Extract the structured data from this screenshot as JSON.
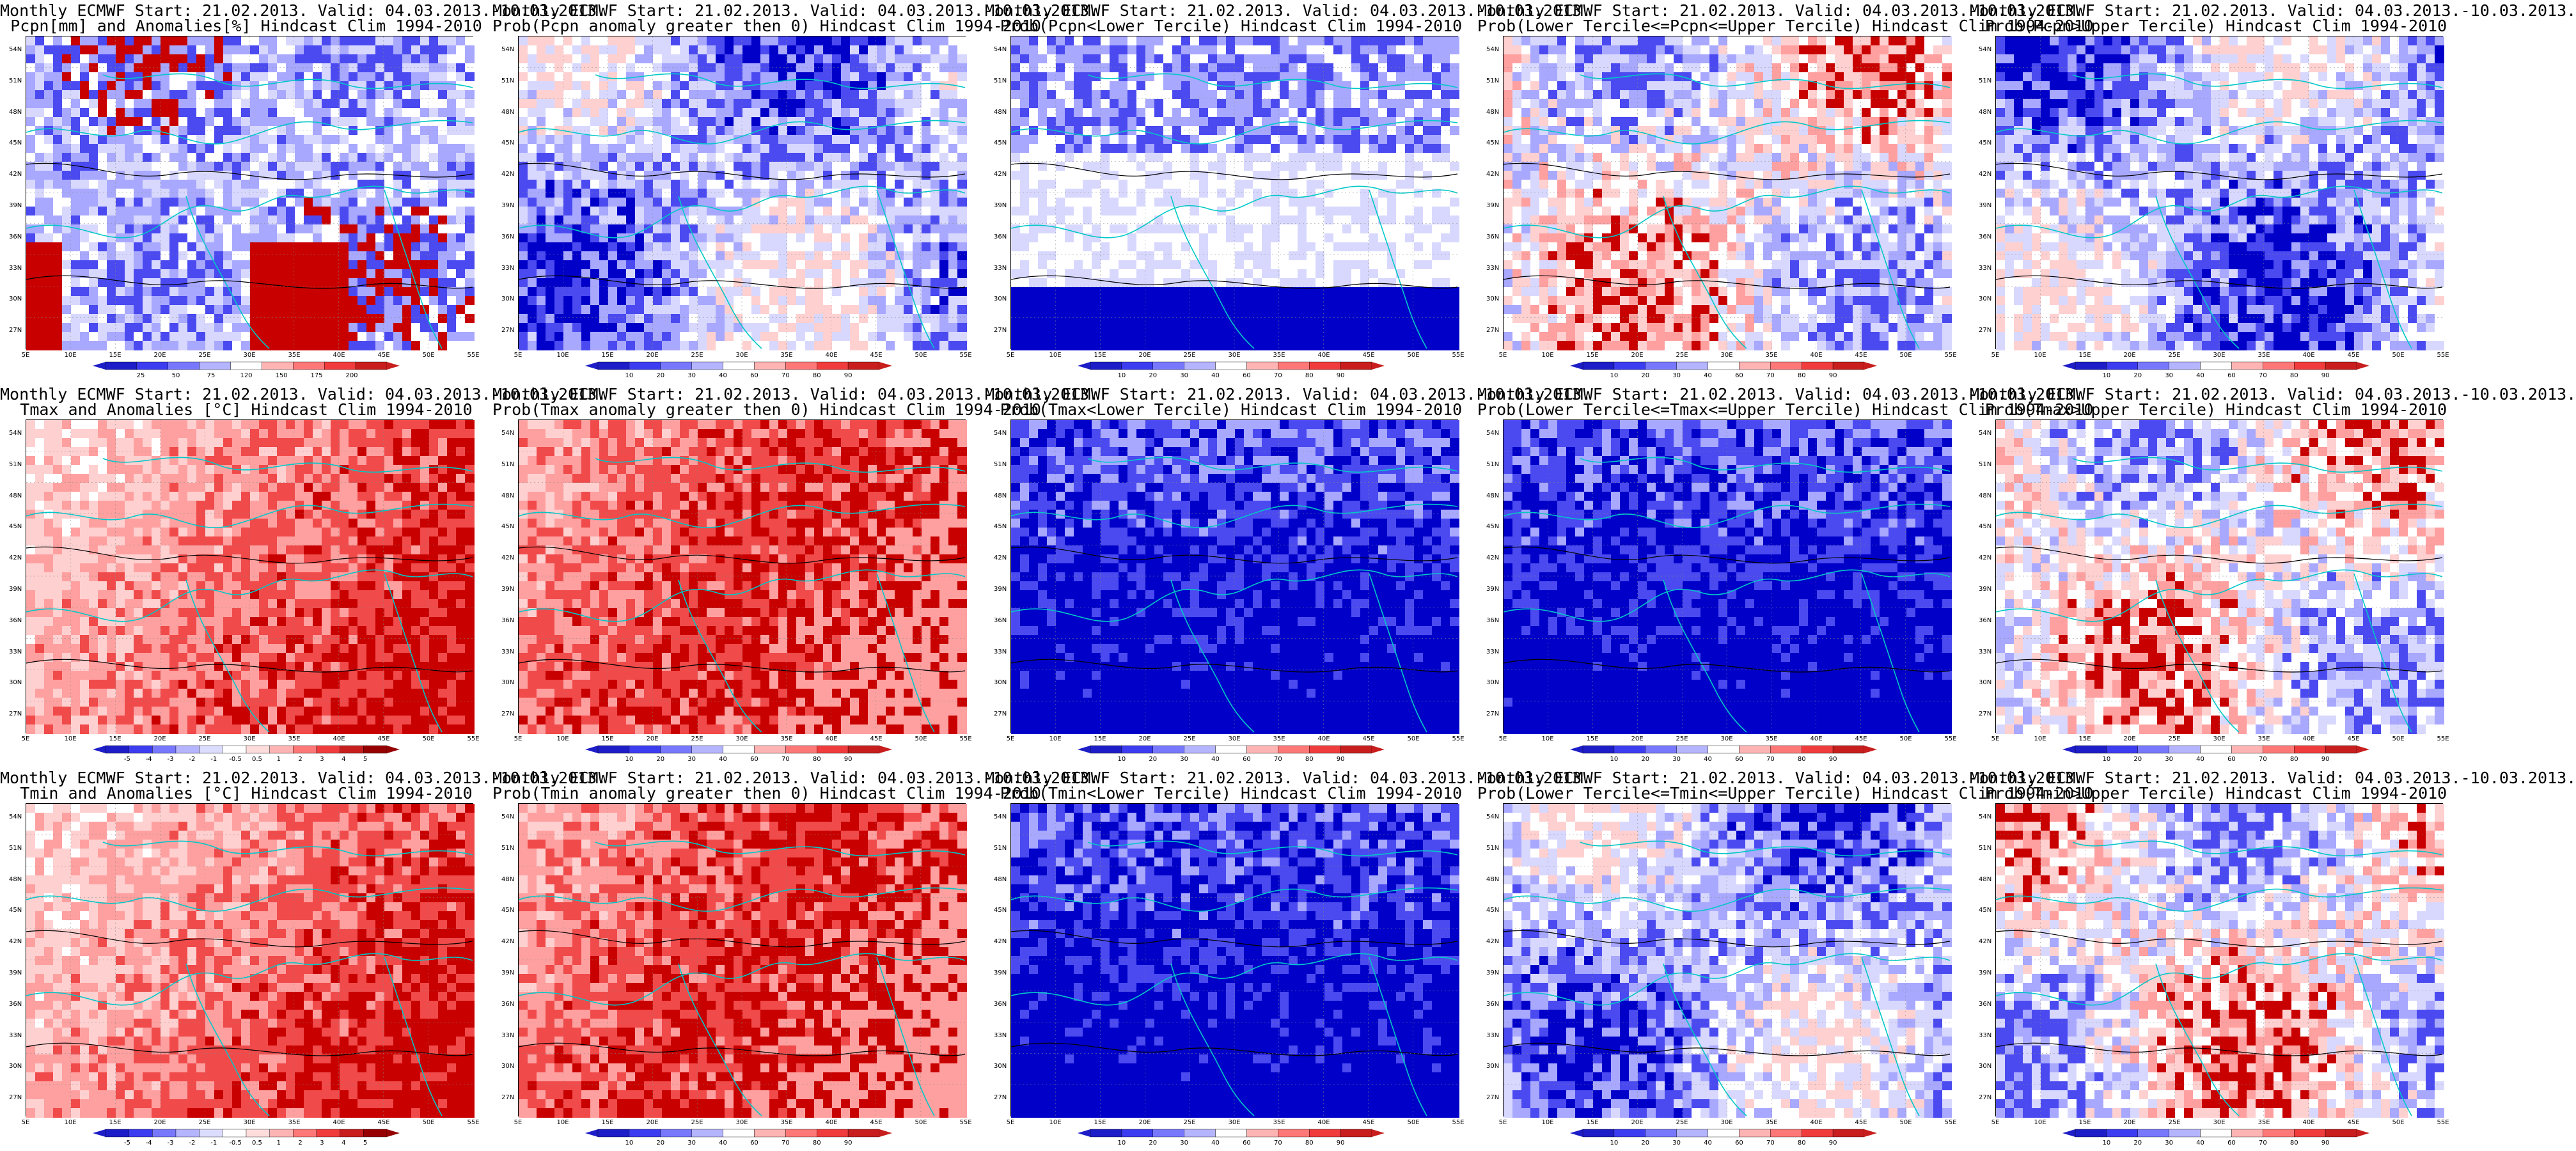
{
  "panels": [
    {
      "line1": "Monthly ECMWF Start: 21.02.2013. Valid: 04.03.2013.-10.03.2013.",
      "line2": "Pcpn[mm] and Anomalies[%] Hindcast Clim 1994-2010",
      "scheme": "pcpn-anom",
      "ticks": [
        "25",
        "50",
        "75",
        "120",
        "150",
        "175",
        "200"
      ]
    },
    {
      "line1": "Monthly ECMWF Start: 21.02.2013. Valid: 04.03.2013.-10.03.2013.",
      "line2": "Prob(Pcpn anomaly greater then 0) Hindcast Clim 1994-2010",
      "scheme": "prob-blue",
      "ticks": [
        "10",
        "20",
        "30",
        "40",
        "60",
        "70",
        "80",
        "90"
      ]
    },
    {
      "line1": "Monthly ECMWF Start: 21.02.2013. Valid: 04.03.2013.-10.03.2013.",
      "line2": "Prob(Pcpn<Lower Tercile) Hindcast Clim 1994-2010",
      "scheme": "prob-white",
      "ticks": [
        "10",
        "20",
        "30",
        "40",
        "60",
        "70",
        "80",
        "90"
      ]
    },
    {
      "line1": "Monthly ECMWF Start: 21.02.2013. Valid: 04.03.2013.-10.03.2013.",
      "line2": "Prob(Lower Tercile<=Pcpn<=Upper Tercile) Hindcast Clim 1994-2010",
      "scheme": "prob-mixed",
      "ticks": [
        "10",
        "20",
        "30",
        "40",
        "60",
        "70",
        "80",
        "90"
      ]
    },
    {
      "line1": "Monthly ECMWF Start: 21.02.2013. Valid: 04.03.2013.-10.03.2013.",
      "line2": "Prob(Pcpn>Upper Tercile) Hindcast Clim 1994-2010",
      "scheme": "prob-blue",
      "ticks": [
        "10",
        "20",
        "30",
        "40",
        "60",
        "70",
        "80",
        "90"
      ]
    },
    {
      "line1": "Monthly ECMWF Start: 21.02.2013. Valid: 04.03.2013.-10.03.2013.",
      "line2": "Tmax and Anomalies [°C] Hindcast Clim 1994-2010",
      "scheme": "temp-red",
      "ticks": [
        "-5",
        "-4",
        "-3",
        "-2",
        "-1",
        "-0.5",
        "0.5",
        "1",
        "2",
        "3",
        "4",
        "5"
      ]
    },
    {
      "line1": "Monthly ECMWF Start: 21.02.2013. Valid: 04.03.2013.-10.03.2013.",
      "line2": "Prob(Tmax anomaly greater then 0) Hindcast Clim 1994-2010",
      "scheme": "prob-red",
      "ticks": [
        "10",
        "20",
        "30",
        "40",
        "60",
        "70",
        "80",
        "90"
      ]
    },
    {
      "line1": "Monthly ECMWF Start: 21.02.2013. Valid: 04.03.2013.-10.03.2013.",
      "line2": "Prob(Tmax<Lower Tercile) Hindcast Clim 1994-2010",
      "scheme": "prob-deepblue",
      "ticks": [
        "10",
        "20",
        "30",
        "40",
        "60",
        "70",
        "80",
        "90"
      ]
    },
    {
      "line1": "Monthly ECMWF Start: 21.02.2013. Valid: 04.03.2013.-10.03.2013.",
      "line2": "Prob(Lower Tercile<=Tmax<=Upper Tercile) Hindcast Clim 1994-2010",
      "scheme": "prob-deepblue",
      "ticks": [
        "10",
        "20",
        "30",
        "40",
        "60",
        "70",
        "80",
        "90"
      ]
    },
    {
      "line1": "Monthly ECMWF Start: 21.02.2013. Valid: 04.03.2013.-10.03.2013.",
      "line2": "Prob(Tmax>Upper Tercile) Hindcast Clim 1994-2010",
      "scheme": "prob-mixed",
      "ticks": [
        "10",
        "20",
        "30",
        "40",
        "60",
        "70",
        "80",
        "90"
      ]
    },
    {
      "line1": "Monthly ECMWF Start: 21.02.2013. Valid: 04.03.2013.-10.03.2013.",
      "line2": "Tmin and Anomalies [°C] Hindcast Clim 1994-2010",
      "scheme": "temp-red",
      "ticks": [
        "-5",
        "-4",
        "-3",
        "-2",
        "-1",
        "-0.5",
        "0.5",
        "1",
        "2",
        "3",
        "4",
        "5"
      ]
    },
    {
      "line1": "Monthly ECMWF Start: 21.02.2013. Valid: 04.03.2013.-10.03.2013.",
      "line2": "Prob(Tmin anomaly greater then 0) Hindcast Clim 1994-2010",
      "scheme": "prob-red",
      "ticks": [
        "10",
        "20",
        "30",
        "40",
        "60",
        "70",
        "80",
        "90"
      ]
    },
    {
      "line1": "Monthly ECMWF Start: 21.02.2013. Valid: 04.03.2013.-10.03.2013.",
      "line2": "Prob(Tmin<Lower Tercile) Hindcast Clim 1994-2010",
      "scheme": "prob-deepblue",
      "ticks": [
        "10",
        "20",
        "30",
        "40",
        "60",
        "70",
        "80",
        "90"
      ]
    },
    {
      "line1": "Monthly ECMWF Start: 21.02.2013. Valid: 04.03.2013.-10.03.2013.",
      "line2": "Prob(Lower Tercile<=Tmin<=Upper Tercile) Hindcast Clim 1994-2010",
      "scheme": "prob-blue",
      "ticks": [
        "10",
        "20",
        "30",
        "40",
        "60",
        "70",
        "80",
        "90"
      ]
    },
    {
      "line1": "Monthly ECMWF Start: 21.02.2013. Valid: 04.03.2013.-10.03.2013.",
      "line2": "Prob(Tmin>Upper Tercile) Hindcast Clim 1994-2010",
      "scheme": "prob-mixed",
      "ticks": [
        "10",
        "20",
        "30",
        "40",
        "60",
        "70",
        "80",
        "90"
      ]
    }
  ],
  "lat_labels": [
    "54N",
    "51N",
    "48N",
    "45N",
    "42N",
    "39N",
    "36N",
    "33N",
    "30N",
    "27N"
  ],
  "lon_labels": [
    "5E",
    "10E",
    "15E",
    "20E",
    "25E",
    "30E",
    "35E",
    "40E",
    "45E",
    "50E",
    "55E"
  ],
  "colors": {
    "blue_dark": "#0000c8",
    "blue_mid": "#4a4af0",
    "blue_light": "#a8a8ff",
    "blue_pale": "#d8d8ff",
    "white": "#ffffff",
    "red_pale": "#ffd0d0",
    "red_light": "#ffa0a0",
    "red_mid": "#f04a4a",
    "red_dark": "#c80000",
    "coast": "#00c8c8",
    "contour": "#000000"
  }
}
